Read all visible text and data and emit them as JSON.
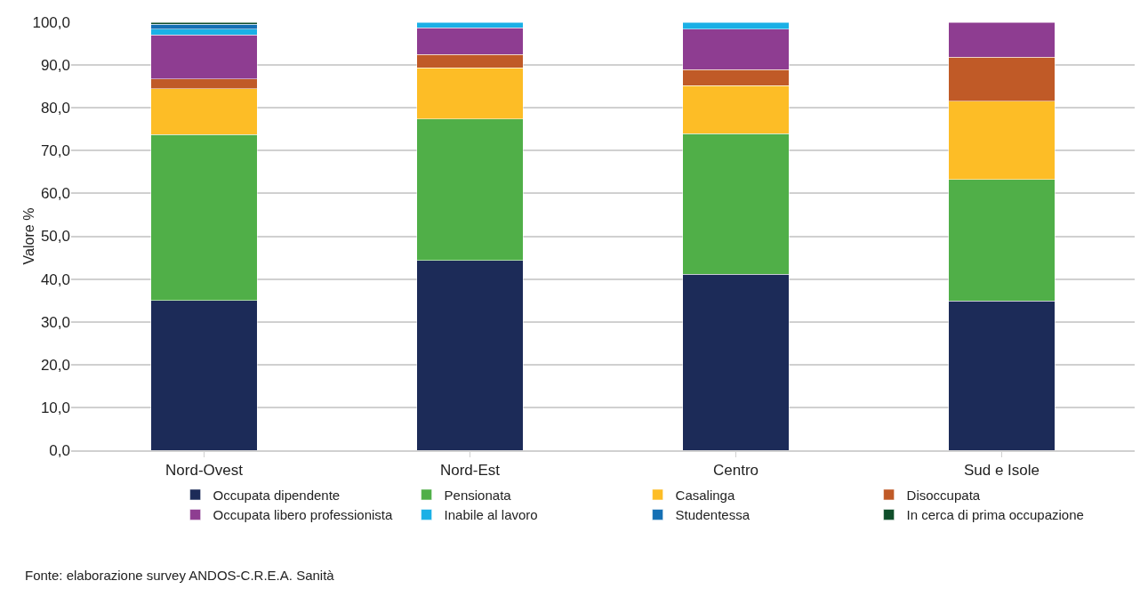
{
  "chart_data": {
    "type": "bar",
    "stacked": true,
    "ylabel": "Valore %",
    "categories": [
      "Nord-Ovest",
      "Nord-Est",
      "Centro",
      "Sud e Isole"
    ],
    "series": [
      {
        "name": "Occupata dipendente",
        "color": "#1c2b58",
        "values": [
          35.0,
          44.3,
          41.1,
          34.9
        ]
      },
      {
        "name": "Pensionata",
        "color": "#50af48",
        "values": [
          38.8,
          33.1,
          32.9,
          28.4
        ]
      },
      {
        "name": "Casalinga",
        "color": "#fdbd26",
        "values": [
          10.7,
          11.9,
          11.2,
          18.3
        ]
      },
      {
        "name": "Disoccupata",
        "color": "#c05a27",
        "values": [
          2.2,
          3.2,
          3.7,
          10.2
        ]
      },
      {
        "name": "Occupata libero professionista",
        "color": "#8e3d91",
        "values": [
          10.3,
          6.2,
          9.5,
          8.2
        ]
      },
      {
        "name": "Inabile al lavoro",
        "color": "#1ab0e6",
        "values": [
          1.4,
          1.3,
          1.6,
          null
        ]
      },
      {
        "name": "Studentessa",
        "color": "#1570b4",
        "values": [
          1.1,
          null,
          null,
          null
        ]
      },
      {
        "name": "In cerca di prima occupazione",
        "color": "#0f4e2a",
        "values": [
          0.5,
          null,
          null,
          null
        ]
      }
    ],
    "ylim": [
      0,
      100
    ],
    "yticks": [
      {
        "value": 0,
        "label": "0,0"
      },
      {
        "value": 10,
        "label": "10,0"
      },
      {
        "value": 20,
        "label": "20,0"
      },
      {
        "value": 30,
        "label": "30,0"
      },
      {
        "value": 40,
        "label": "40,0"
      },
      {
        "value": 50,
        "label": "50,0"
      },
      {
        "value": 60,
        "label": "60,0"
      },
      {
        "value": 70,
        "label": "70,0"
      },
      {
        "value": 80,
        "label": "80,0"
      },
      {
        "value": 90,
        "label": "90,0"
      },
      {
        "value": 100,
        "label": "100,0"
      }
    ],
    "grid": "y",
    "legend": "bottom",
    "annotations": [
      "Fonte: elaborazione survey ANDOS-C.R.E.A. Sanità"
    ]
  }
}
